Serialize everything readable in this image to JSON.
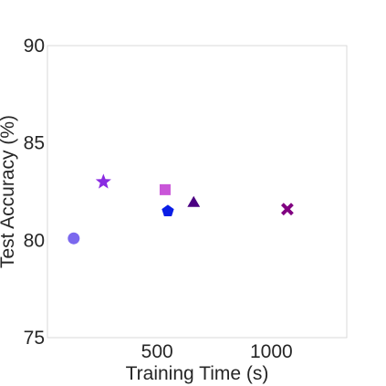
{
  "chart_data": {
    "type": "scatter",
    "title": "",
    "xlabel": "Training Time (s)",
    "ylabel": "Test Accuracy (%)",
    "xlim": [
      20,
      1330
    ],
    "ylim": [
      75,
      90
    ],
    "xticks": [
      500,
      1000
    ],
    "yticks": [
      75,
      80,
      85,
      90
    ],
    "grid": false,
    "points": [
      {
        "x": 135,
        "y": 80.1,
        "marker": "circle",
        "color": "#7b68ee"
      },
      {
        "x": 265,
        "y": 83.0,
        "marker": "star",
        "color": "#8a2be2"
      },
      {
        "x": 535,
        "y": 82.6,
        "marker": "square",
        "color": "#c955d8"
      },
      {
        "x": 547,
        "y": 81.5,
        "marker": "pentagon",
        "color": "#0a1ee6"
      },
      {
        "x": 660,
        "y": 81.9,
        "marker": "triangle",
        "color": "#4b0082"
      },
      {
        "x": 1070,
        "y": 81.6,
        "marker": "x",
        "color": "#800080"
      }
    ]
  }
}
